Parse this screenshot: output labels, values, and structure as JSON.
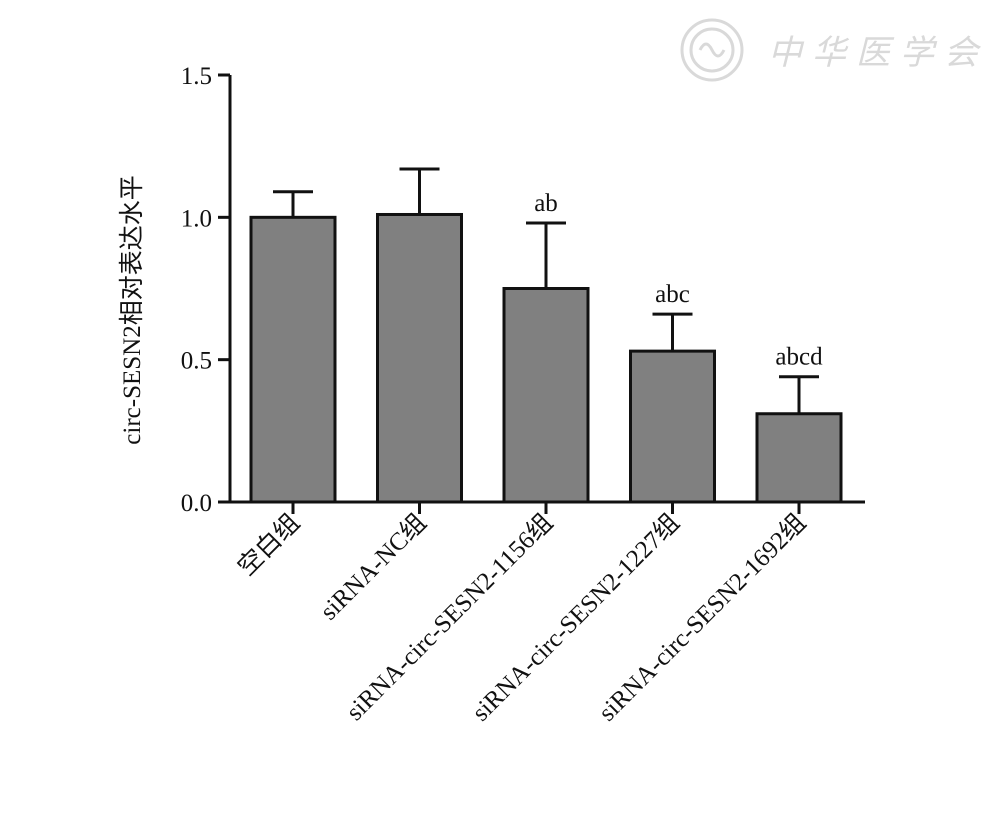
{
  "watermark": {
    "text": "中华医学会",
    "color": "#d4d4d4"
  },
  "chart_data": {
    "type": "bar",
    "title": "",
    "xlabel": "",
    "ylabel": "circ-SESN2相对表达水平",
    "ylim": [
      0,
      1.5
    ],
    "yticks": [
      "0.0",
      "0.5",
      "1.0",
      "1.5"
    ],
    "grid": false,
    "legend": "none",
    "bar_color": "#808080",
    "categories": [
      "空白组",
      "siRNA-NC组",
      "siRNA-circ-SESN2-1156组",
      "siRNA-circ-SESN2-1227组",
      "siRNA-circ-SESN2-1692组"
    ],
    "values": [
      1.0,
      1.01,
      0.75,
      0.53,
      0.31
    ],
    "errors": [
      0.09,
      0.16,
      0.23,
      0.13,
      0.13
    ],
    "annotations": [
      "",
      "",
      "ab",
      "abc",
      "abcd"
    ]
  }
}
